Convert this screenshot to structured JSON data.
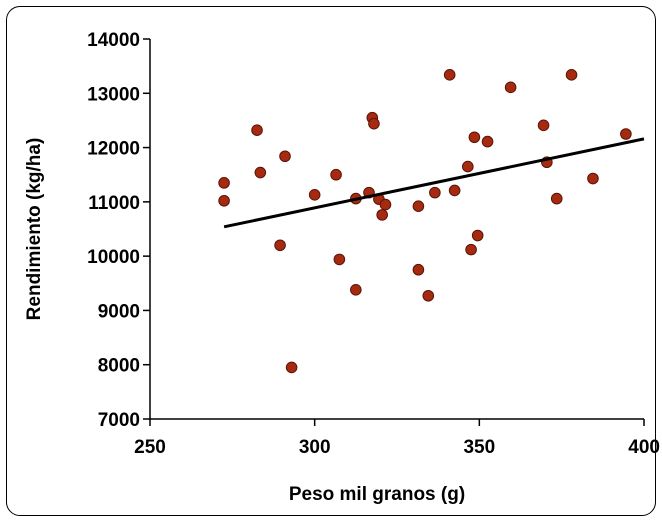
{
  "chart_data": {
    "type": "scatter",
    "xlabel": "Peso mil granos (g)",
    "ylabel": "Rendimiento (kg/ha)",
    "xlim": [
      250,
      400
    ],
    "ylim": [
      7000,
      14000
    ],
    "x_ticks": [
      250,
      300,
      350,
      400
    ],
    "y_ticks": [
      7000,
      8000,
      9000,
      10000,
      11000,
      12000,
      13000,
      14000
    ],
    "x_tick_labels": [
      "250",
      "300",
      "350",
      "400"
    ],
    "y_tick_labels": [
      "7000",
      "8000",
      "9000",
      "10000",
      "11000",
      "12000",
      "13000",
      "14000"
    ],
    "grid": false,
    "marker_color": "#a52a0f",
    "marker_edge_color": "#5a1408",
    "trendline_color": "#000000",
    "series": [
      {
        "points": [
          [
            272.5,
            11350
          ],
          [
            272.5,
            11020
          ],
          [
            282.5,
            12320
          ],
          [
            283.5,
            11540
          ],
          [
            289.5,
            10200
          ],
          [
            291.0,
            11840
          ],
          [
            293.0,
            7950
          ],
          [
            300.0,
            11130
          ],
          [
            306.5,
            11500
          ],
          [
            307.5,
            9940
          ],
          [
            312.5,
            11060
          ],
          [
            312.5,
            9380
          ],
          [
            316.5,
            11170
          ],
          [
            317.5,
            12550
          ],
          [
            318.0,
            12440
          ],
          [
            319.5,
            11050
          ],
          [
            320.5,
            10760
          ],
          [
            321.5,
            10950
          ],
          [
            331.5,
            10920
          ],
          [
            331.5,
            9750
          ],
          [
            334.5,
            9270
          ],
          [
            336.5,
            11170
          ],
          [
            341.0,
            13340
          ],
          [
            342.5,
            11210
          ],
          [
            346.5,
            11650
          ],
          [
            347.5,
            10120
          ],
          [
            348.5,
            12190
          ],
          [
            349.5,
            10380
          ],
          [
            352.5,
            12110
          ],
          [
            359.5,
            13110
          ],
          [
            369.5,
            12410
          ],
          [
            370.5,
            11730
          ],
          [
            373.5,
            11060
          ],
          [
            378.0,
            13340
          ],
          [
            384.5,
            11430
          ],
          [
            394.5,
            12250
          ]
        ]
      }
    ],
    "trendline": {
      "x": [
        272.5,
        400
      ],
      "y": [
        10540,
        12160
      ]
    }
  }
}
